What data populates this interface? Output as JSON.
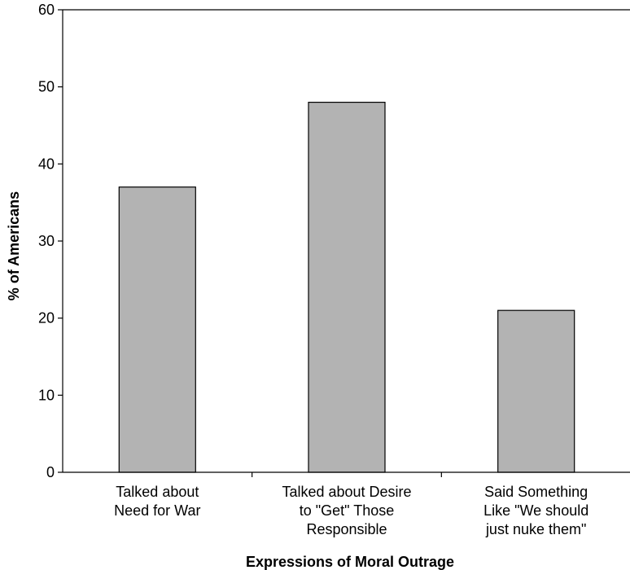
{
  "chart_data": {
    "type": "bar",
    "categories": [
      [
        "Talked about",
        "Need for War"
      ],
      [
        "Talked about Desire",
        "to \"Get\" Those",
        "Responsible"
      ],
      [
        "Said Something",
        "Like \"We should",
        "just nuke them\""
      ]
    ],
    "values": [
      37,
      48,
      21
    ],
    "xlabel": "Expressions of Moral Outrage",
    "ylabel": "% of Americans",
    "ylim": [
      0,
      60
    ],
    "yticks": [
      0,
      10,
      20,
      30,
      40,
      50,
      60
    ],
    "grid": false,
    "legend": "none",
    "bar_color": "#b3b3b3",
    "bar_stroke": "#000000"
  }
}
